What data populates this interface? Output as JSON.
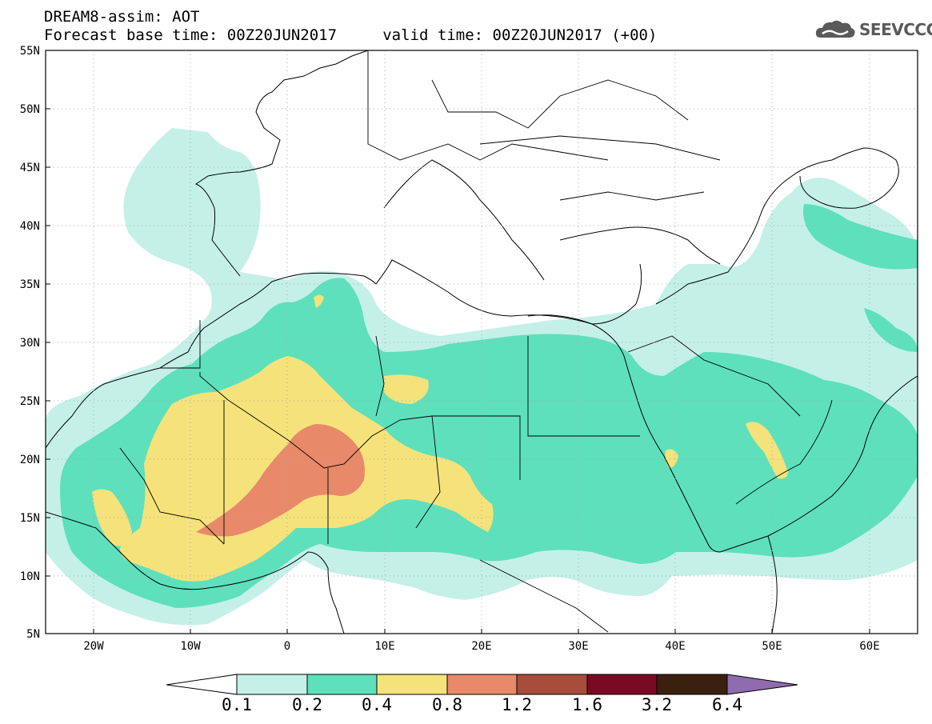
{
  "title": {
    "line1": "DREAM8-assim: AOT",
    "line2": "Forecast base time: 00Z20JUN2017     valid time: 00Z20JUN2017 (+00)"
  },
  "logo": {
    "text": "SEEVCCC",
    "icon": "cloud-icon"
  },
  "map": {
    "lon_range": [
      -25,
      65
    ],
    "lat_range": [
      5,
      55
    ],
    "grid": true,
    "lat_ticks": [
      "55N",
      "50N",
      "45N",
      "40N",
      "35N",
      "30N",
      "25N",
      "20N",
      "15N",
      "10N",
      "5N"
    ],
    "lon_ticks": [
      "20W",
      "10W",
      "0",
      "10E",
      "20E",
      "30E",
      "40E",
      "50E",
      "60E"
    ]
  },
  "colorbar": {
    "labels": [
      "0.1",
      "0.2",
      "0.4",
      "0.8",
      "1.2",
      "1.6",
      "3.2",
      "6.4"
    ],
    "colors": [
      "#ffffff",
      "#c4f0e8",
      "#5ee0bc",
      "#f5e27a",
      "#e8896a",
      "#a84d3c",
      "#7a0a24",
      "#3b2010",
      "#8f6bb0"
    ]
  }
}
